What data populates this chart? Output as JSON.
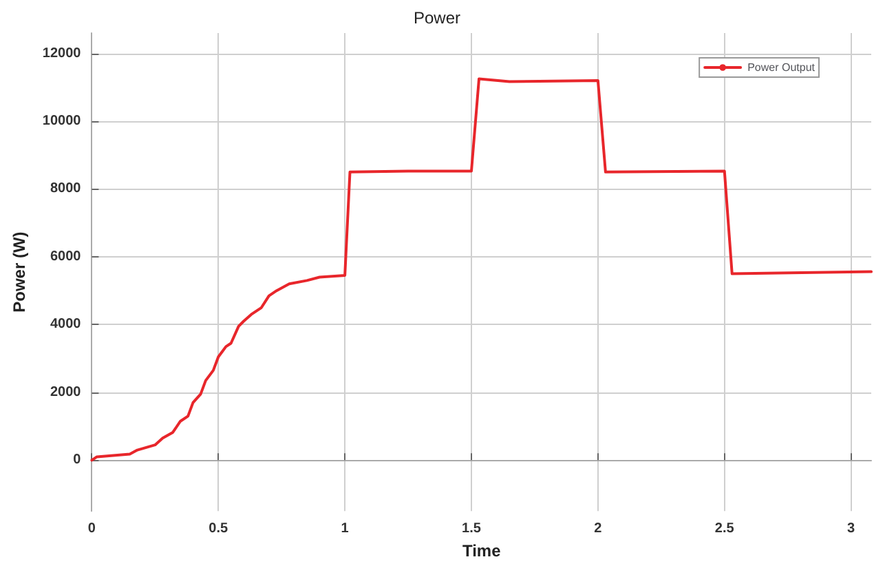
{
  "chart_data": {
    "type": "line",
    "title": "Power",
    "xlabel": "Time",
    "ylabel": "Power (W)",
    "xlim": [
      0,
      3.08
    ],
    "xticks": [
      0,
      0.5,
      1,
      1.5,
      2,
      2.5,
      3
    ],
    "ylim": [
      -1500,
      12600
    ],
    "yticks": [
      0,
      2000,
      4000,
      6000,
      8000,
      10000,
      12000
    ],
    "grid": true,
    "legend": "top right",
    "line_style": "solid",
    "marker": "none",
    "series": [
      {
        "name": "Power Output",
        "color": "#e8262b",
        "x": [
          0,
          0.02,
          0.15,
          0.18,
          0.25,
          0.28,
          0.32,
          0.35,
          0.38,
          0.4,
          0.43,
          0.45,
          0.48,
          0.5,
          0.53,
          0.55,
          0.58,
          0.6,
          0.63,
          0.67,
          0.7,
          0.73,
          0.78,
          0.85,
          0.9,
          1.0,
          1.02,
          1.25,
          1.5,
          1.53,
          1.65,
          2.0,
          2.03,
          2.5,
          2.53,
          3.08
        ],
        "values": [
          0,
          100,
          180,
          300,
          450,
          650,
          820,
          1150,
          1300,
          1700,
          1950,
          2350,
          2650,
          3050,
          3350,
          3450,
          3950,
          4100,
          4300,
          4500,
          4850,
          5000,
          5200,
          5300,
          5400,
          5450,
          8500,
          8530,
          8530,
          11250,
          11170,
          11200,
          8500,
          8530,
          5500,
          5560
        ]
      }
    ]
  }
}
